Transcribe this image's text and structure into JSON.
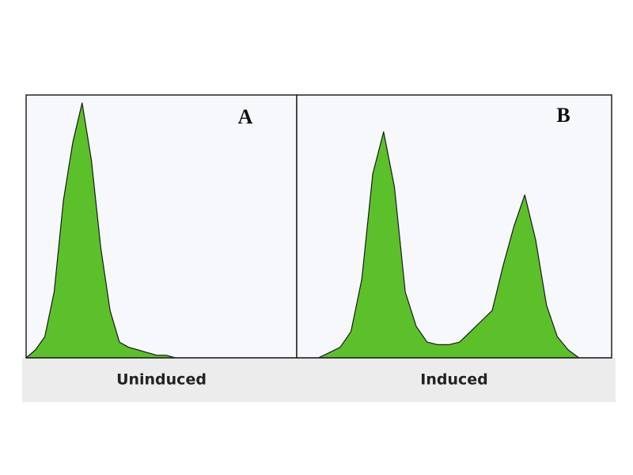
{
  "chart_data": [
    {
      "type": "area",
      "title": "A",
      "xlabel": "Uninduced",
      "color": "#5cc02a",
      "ylim": [
        0,
        100
      ],
      "values": [
        0,
        3,
        8,
        25,
        60,
        82,
        97,
        75,
        42,
        18,
        6,
        4,
        3,
        2,
        1,
        1,
        0,
        0,
        0,
        0,
        0,
        0,
        0,
        0,
        0,
        0,
        0,
        0,
        0,
        0
      ]
    },
    {
      "type": "area",
      "title": "B",
      "xlabel": "Induced",
      "color": "#5cc02a",
      "ylim": [
        0,
        100
      ],
      "values": [
        0,
        0,
        0,
        2,
        4,
        10,
        30,
        70,
        86,
        65,
        25,
        12,
        6,
        5,
        5,
        6,
        10,
        14,
        18,
        35,
        50,
        62,
        45,
        20,
        8,
        3,
        0,
        0,
        0,
        0
      ]
    }
  ]
}
